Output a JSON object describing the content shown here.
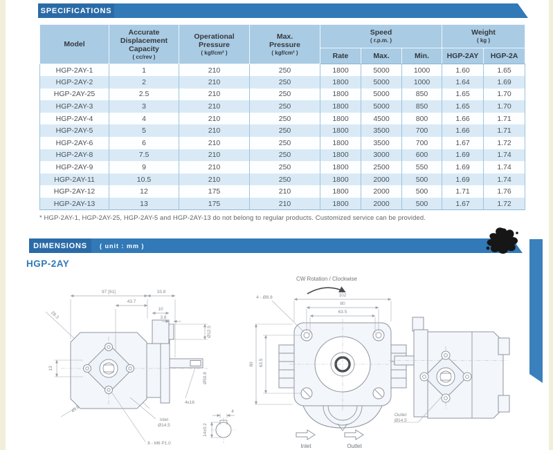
{
  "colors": {
    "banner_blue": "#3279b7",
    "banner_dark_blue": "#2a6ba7",
    "table_header_bg": "#a9cbe4",
    "row_stripe_bg": "#d9eaf6",
    "accent_blue": "#2e79b8",
    "page_edge_cream": "#f1eeda"
  },
  "sections": {
    "specifications": {
      "title": "SPECIFICATIONS",
      "footnote": "* HGP-2AY-1, HGP-2AY-25, HGP-2AY-5 and HGP-2AY-13 do not belong to regular products.  Customized service can be provided."
    },
    "dimensions": {
      "title": "DIMENSIONS",
      "unit": "( unit : mm )",
      "model": "HGP-2AY"
    }
  },
  "table": {
    "headers": {
      "model": "Model",
      "capacity": "Accurate\nDisplacement\nCapacity",
      "capacity_unit": "( cc/rev )",
      "operational": "Operational\nPressure",
      "operational_unit": "( kgf/cm² )",
      "max_pressure": "Max.\nPressure",
      "max_pressure_unit": "( kgf/cm² )",
      "speed": "Speed",
      "speed_unit": "( r.p.m. )",
      "weight": "Weight",
      "weight_unit": "( kg )"
    },
    "subheaders": [
      "Rate",
      "Max.",
      "Min.",
      "HGP-2AY",
      "HGP-2A"
    ],
    "rows": [
      [
        "HGP-2AY-1",
        "1",
        "210",
        "250",
        "1800",
        "5000",
        "1000",
        "1.60",
        "1.65"
      ],
      [
        "HGP-2AY-2",
        "2",
        "210",
        "250",
        "1800",
        "5000",
        "1000",
        "1.64",
        "1.69"
      ],
      [
        "HGP-2AY-25",
        "2.5",
        "210",
        "250",
        "1800",
        "5000",
        "850",
        "1.65",
        "1.70"
      ],
      [
        "HGP-2AY-3",
        "3",
        "210",
        "250",
        "1800",
        "5000",
        "850",
        "1.65",
        "1.70"
      ],
      [
        "HGP-2AY-4",
        "4",
        "210",
        "250",
        "1800",
        "4500",
        "800",
        "1.66",
        "1.71"
      ],
      [
        "HGP-2AY-5",
        "5",
        "210",
        "250",
        "1800",
        "3500",
        "700",
        "1.66",
        "1.71"
      ],
      [
        "HGP-2AY-6",
        "6",
        "210",
        "250",
        "1800",
        "3500",
        "700",
        "1.67",
        "1.72"
      ],
      [
        "HGP-2AY-8",
        "7.5",
        "210",
        "250",
        "1800",
        "3000",
        "600",
        "1.69",
        "1.74"
      ],
      [
        "HGP-2AY-9",
        "9",
        "210",
        "250",
        "1800",
        "2500",
        "550",
        "1.69",
        "1.74"
      ],
      [
        "HGP-2AY-11",
        "10.5",
        "210",
        "250",
        "1800",
        "2000",
        "500",
        "1.69",
        "1.74"
      ],
      [
        "HGP-2AY-12",
        "12",
        "175",
        "210",
        "1800",
        "2000",
        "500",
        "1.71",
        "1.76"
      ],
      [
        "HGP-2AY-13",
        "13",
        "175",
        "210",
        "1800",
        "2000",
        "500",
        "1.67",
        "1.72"
      ]
    ]
  },
  "drawings": {
    "left": {
      "dim_width_total": "97 [91]",
      "dim_338": "33.8",
      "dim_437": "43.7",
      "dim_10": "10",
      "dim_38": "3.8",
      "dim_283": "28.3",
      "dim_bore": "Ø12.5",
      "dim_13": "13",
      "dim_452": "45.2",
      "dim_pilot": "Ø50.8",
      "key_label": "4x16",
      "inlet_line1": "Inlet",
      "inlet_line2": "Ø14.5",
      "thread_label": "8 - M6 P1.0"
    },
    "front": {
      "rotation_label": "CW Rotation / Clockwise",
      "dim_102": "102",
      "dim_80_top": "80",
      "dim_635_top": "63.5",
      "dim_80_left": "80",
      "dim_635_left": "63.5",
      "holes_label": "4 - Ø8.8",
      "inlet_label": "Inlet",
      "outlet_label": "Outlet"
    },
    "shaft_detail": {
      "dim_key_width": "4",
      "dim_shaft": "14±0.2"
    },
    "right": {
      "outlet_line1": "Outlet",
      "outlet_line2": "Ø14.5"
    }
  }
}
